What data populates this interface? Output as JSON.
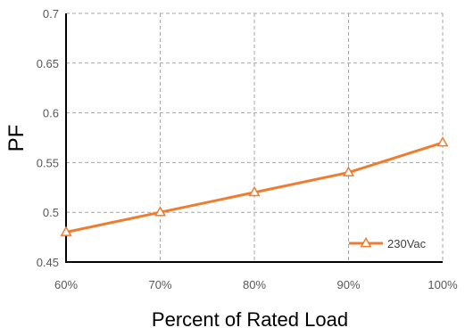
{
  "chart_data": {
    "type": "line",
    "title": "",
    "xlabel": "Percent of Rated Load",
    "ylabel": "PF",
    "categories": [
      "60%",
      "70%",
      "80%",
      "90%",
      "100%"
    ],
    "series": [
      {
        "name": "230Vac",
        "values": [
          0.48,
          0.5,
          0.52,
          0.54,
          0.57
        ],
        "color": "#ED7D31",
        "marker": "triangle-open"
      }
    ],
    "ylim": [
      0.45,
      0.7
    ],
    "yticks": [
      "0.45",
      "0.5",
      "0.55",
      "0.6",
      "0.65",
      "0.7"
    ],
    "grid": true,
    "grid_style": "dashed",
    "legend_position": "bottom-right"
  }
}
